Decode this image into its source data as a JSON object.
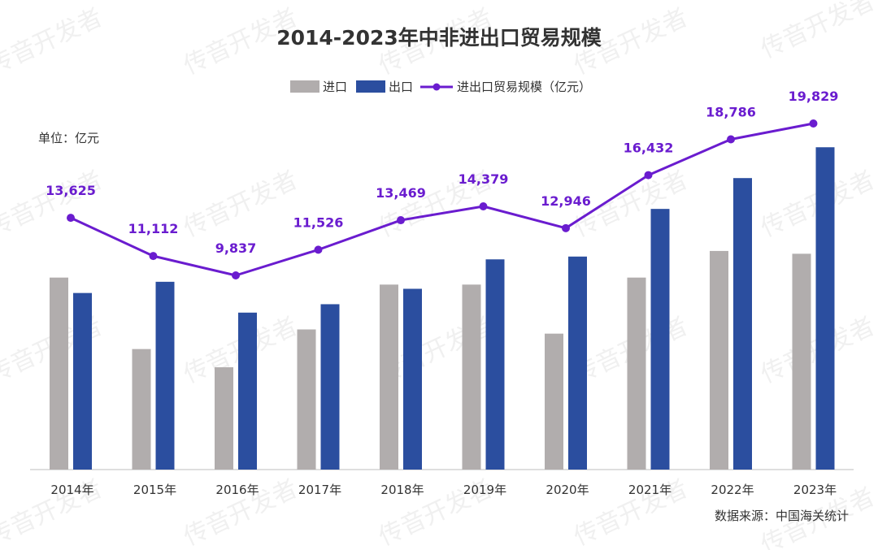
{
  "watermark": "传音开发者",
  "chart_data": {
    "type": "bar",
    "title": "2014-2023年中非进出口贸易规模",
    "unit_label": "单位：亿元",
    "source_label": "数据来源：中国海关统计",
    "categories": [
      "2014年",
      "2015年",
      "2016年",
      "2017年",
      "2018年",
      "2019年",
      "2020年",
      "2021年",
      "2022年",
      "2023年"
    ],
    "series": [
      {
        "name": "进口",
        "kind": "bar",
        "color": "#b1adad",
        "values": [
          6850,
          4300,
          3650,
          5000,
          6600,
          6600,
          4850,
          6850,
          7800,
          7700
        ]
      },
      {
        "name": "出口",
        "kind": "bar",
        "color": "#2b4e9f",
        "values": [
          6300,
          6700,
          5600,
          5900,
          6450,
          7500,
          7600,
          9300,
          10400,
          11500
        ]
      },
      {
        "name": "进出口贸易规模（亿元）",
        "kind": "line",
        "color": "#6a1ccf",
        "values": [
          13625,
          11112,
          9837,
          11526,
          13469,
          14379,
          12946,
          16432,
          18786,
          19829
        ],
        "labels": [
          "13,625",
          "11,112",
          "9,837",
          "11,526",
          "13,469",
          "14,379",
          "12,946",
          "16,432",
          "18,786",
          "19,829"
        ]
      }
    ],
    "xlabel": "",
    "ylabel": "",
    "grid": false,
    "legend_position": "top-center"
  }
}
